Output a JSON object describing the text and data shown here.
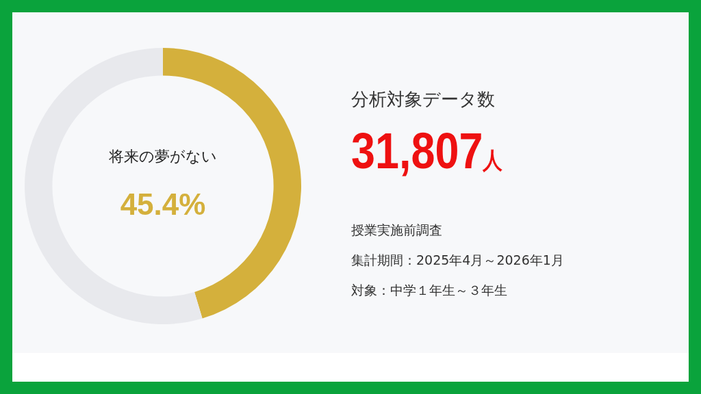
{
  "chart_data": [
    {
      "type": "donut",
      "categories": [
        "将来の夢がない",
        null
      ],
      "values": [
        45.4,
        54.6
      ],
      "colors": [
        "#d4b03c",
        "#e8e9ed"
      ],
      "value_labels": [
        "45.4%",
        null
      ],
      "legend": false
    },
    {
      "type": "other",
      "title": "分析対象データ数",
      "annotations": [
        "31,807人",
        "授業実施前調査",
        "集計期間：2025年4月～2026年1月",
        "対象：中学１年生～３年生"
      ]
    }
  ]
}
